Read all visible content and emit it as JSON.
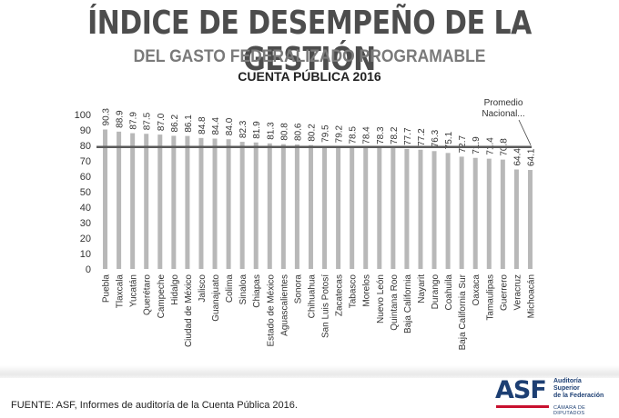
{
  "header": {
    "title": "ÍNDICE DE DESEMPEÑO DE LA GESTIÓN",
    "subtitle": "DEL GASTO FEDERALIZADO PROGRAMABLE",
    "subtitle2": "CUENTA PÚBLICA 2016"
  },
  "chart_data": {
    "type": "bar",
    "title": "ÍNDICE DE DESEMPEÑO DE LA GESTIÓN",
    "categories": [
      "Puebla",
      "Tlaxcala",
      "Yucatán",
      "Querétaro",
      "Campeche",
      "Hidalgo",
      "Ciudad de México",
      "Jalisco",
      "Guanajuato",
      "Colima",
      "Sinaloa",
      "Chiapas",
      "Estado de México",
      "Aguascalientes",
      "Sonora",
      "Chihuahua",
      "San Luis Potosí",
      "Zacatecas",
      "Tabasco",
      "Morelos",
      "Nuevo León",
      "Quintana Roo",
      "Baja California",
      "Nayarit",
      "Durango",
      "Coahuila",
      "Baja California Sur",
      "Oaxaca",
      "Tamaulipas",
      "Guerrero",
      "Veracruz",
      "Michoacán"
    ],
    "values": [
      90.3,
      88.9,
      87.9,
      87.5,
      87.0,
      86.2,
      86.1,
      84.8,
      84.4,
      84.0,
      82.3,
      81.9,
      81.3,
      80.8,
      80.6,
      80.2,
      79.5,
      79.2,
      78.5,
      78.4,
      78.3,
      78.2,
      77.7,
      77.2,
      76.3,
      75.1,
      72.7,
      71.9,
      71.4,
      70.8,
      64.4,
      64.1
    ],
    "value_labels": [
      "90.3",
      "88.9",
      "87.9",
      "87.5",
      "87.0",
      "86.2",
      "86.1",
      "84.8",
      "84.4",
      "84.0",
      "82.3",
      "81.9",
      "81.3",
      "80.8",
      "80.6",
      "80.2",
      "79.5",
      "79.2",
      "78.5",
      "78.4",
      "78.3",
      "78.2",
      "77.7",
      "77.2",
      "76.3",
      "75.1",
      "72.7",
      "71.9",
      "71.4",
      "70.8",
      "64.4",
      "64.1"
    ],
    "yticks": [
      0,
      10,
      20,
      30,
      40,
      50,
      60,
      70,
      80,
      90,
      100
    ],
    "ylim": [
      0,
      100
    ],
    "xlabel": "",
    "ylabel": "",
    "grid": false,
    "reference_line": {
      "label": "Promedio Nacional...",
      "value": 79.0
    },
    "colors": {
      "bar": "#b8b8b8",
      "reference_line": "#5a5a5a"
    }
  },
  "footer": {
    "source": "FUENTE: ASF, Informes de auditoría de la Cuenta Pública 2016."
  },
  "logo": {
    "word": "ASF",
    "line1": "Auditoría",
    "line2": "Superior",
    "line3": "de la Federación",
    "sub": "CÁMARA DE DIPUTADOS"
  }
}
